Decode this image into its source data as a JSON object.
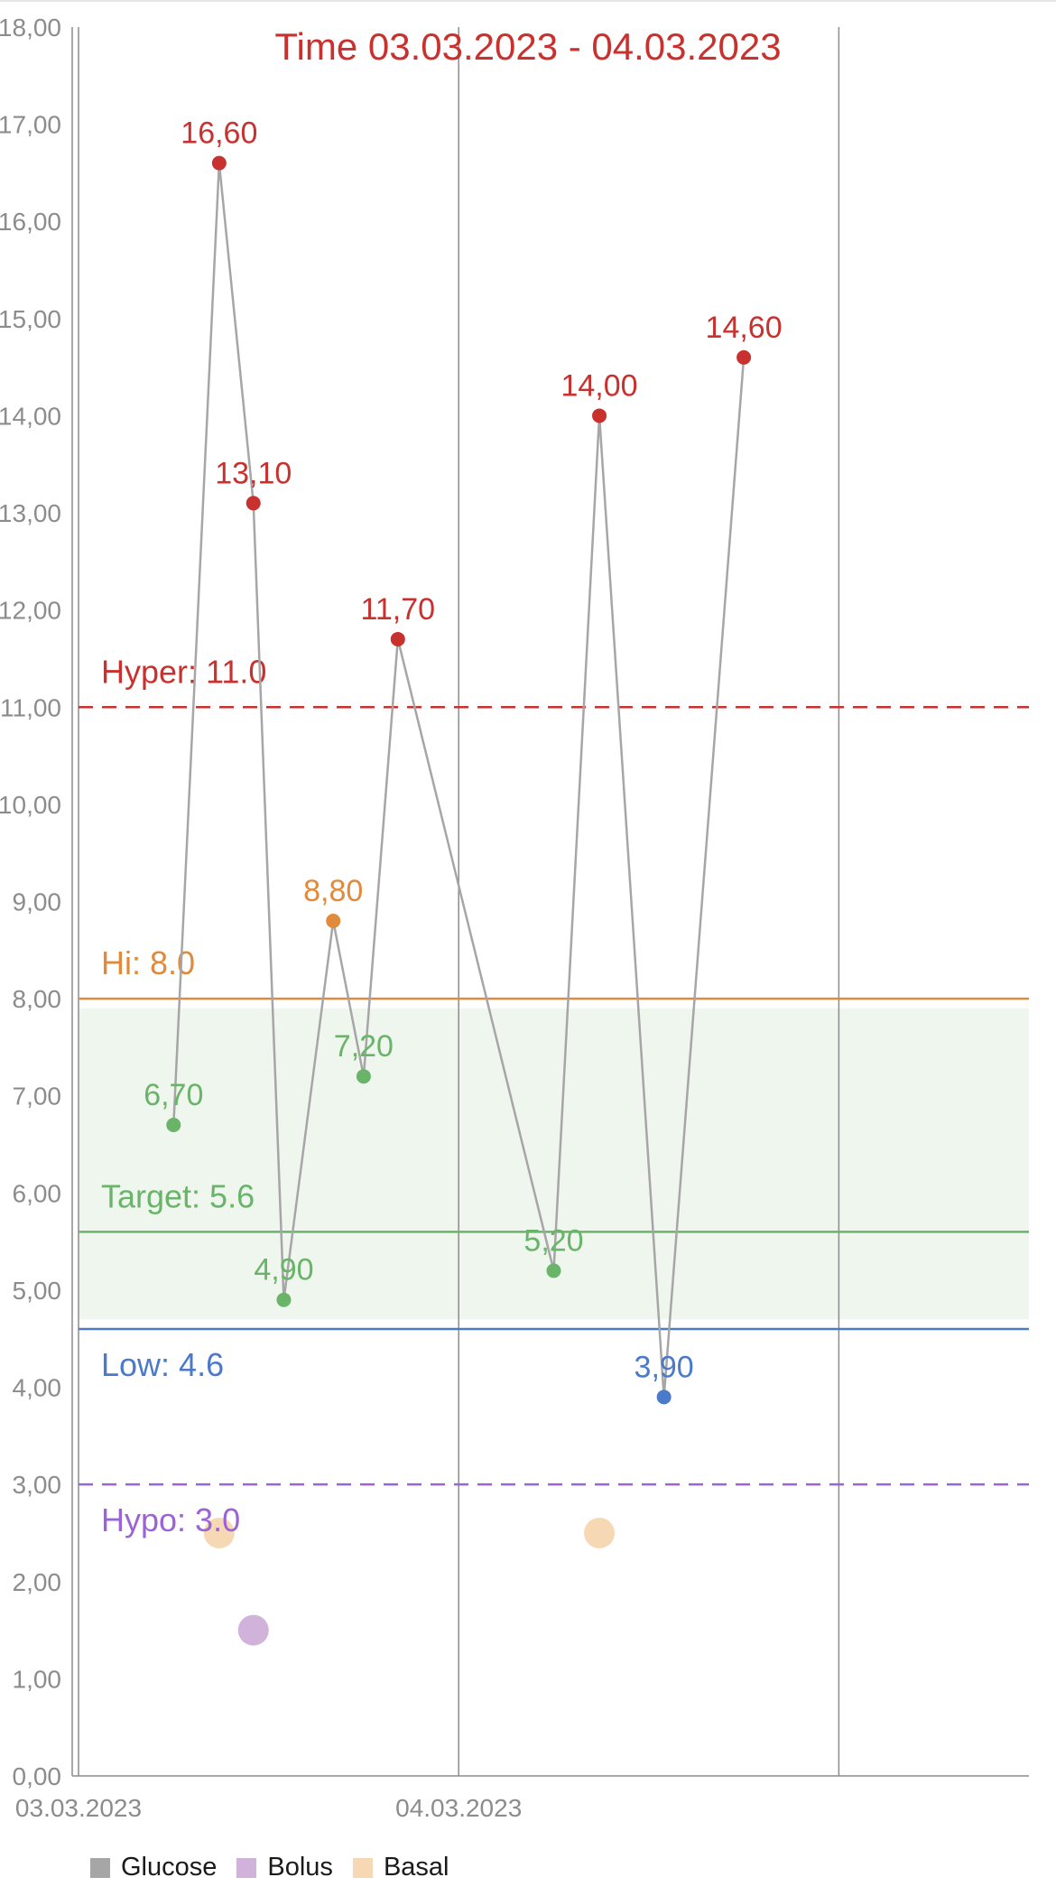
{
  "chart_data": {
    "type": "scatter",
    "title": "Time 03.03.2023 - 04.03.2023",
    "y_ticks": [
      "0,00",
      "1,00",
      "2,00",
      "3,00",
      "4,00",
      "5,00",
      "6,00",
      "7,00",
      "8,00",
      "9,00",
      "10,00",
      "11,00",
      "12,00",
      "13,00",
      "14,00",
      "15,00",
      "16,00",
      "17,00",
      "18,00"
    ],
    "ylim": [
      0,
      18
    ],
    "x_ticks": [
      {
        "label": "03.03.2023",
        "pos": 0
      },
      {
        "label": "04.03.2023",
        "pos": 1
      },
      {
        "label": "",
        "pos": 2
      }
    ],
    "xlim": [
      0,
      2.5
    ],
    "grid": "vertical",
    "target_range": [
      4.7,
      7.9
    ],
    "thresholds": [
      {
        "label": "Hyper: 11.0",
        "value": 11.0,
        "color": "#c8312e",
        "style": "dashed"
      },
      {
        "label": "Hi: 8.0",
        "value": 8.0,
        "color": "#e08a3c",
        "style": "solid"
      },
      {
        "label": "Target: 5.6",
        "value": 5.6,
        "color": "#6ab46a",
        "style": "solid"
      },
      {
        "label": "Low: 4.6",
        "value": 4.6,
        "color": "#4a7ac9",
        "style": "solid"
      },
      {
        "label": "Hypo: 3.0",
        "value": 3.0,
        "color": "#9a64d6",
        "style": "dashed"
      }
    ],
    "series": [
      {
        "name": "Glucose",
        "color": "#a6a6a6",
        "points": [
          {
            "x": 0.25,
            "y": 6.7,
            "label": "6,70"
          },
          {
            "x": 0.37,
            "y": 16.6,
            "label": "16,60"
          },
          {
            "x": 0.46,
            "y": 13.1,
            "label": "13,10"
          },
          {
            "x": 0.54,
            "y": 4.9,
            "label": "4,90"
          },
          {
            "x": 0.67,
            "y": 8.8,
            "label": "8,80"
          },
          {
            "x": 0.75,
            "y": 7.2,
            "label": "7,20"
          },
          {
            "x": 0.84,
            "y": 11.7,
            "label": "11,70"
          },
          {
            "x": 1.25,
            "y": 5.2,
            "label": "5,20"
          },
          {
            "x": 1.37,
            "y": 14.0,
            "label": "14,00"
          },
          {
            "x": 1.54,
            "y": 3.9,
            "label": "3,90"
          },
          {
            "x": 1.75,
            "y": 14.6,
            "label": "14,60"
          }
        ]
      },
      {
        "name": "Bolus",
        "color": "#d1b2da",
        "points": [
          {
            "x": 0.46,
            "y": 1.5
          }
        ]
      },
      {
        "name": "Basal",
        "color": "#f6d9b4",
        "points": [
          {
            "x": 0.37,
            "y": 2.5
          },
          {
            "x": 1.37,
            "y": 2.5
          }
        ]
      }
    ],
    "point_colors": {
      "high": "#c8312e",
      "hi": "#e08a3c",
      "target": "#6ab46a",
      "low": "#4a7ac9"
    },
    "axis_color": "#8c8c8c",
    "legend_position": "bottom-left"
  }
}
